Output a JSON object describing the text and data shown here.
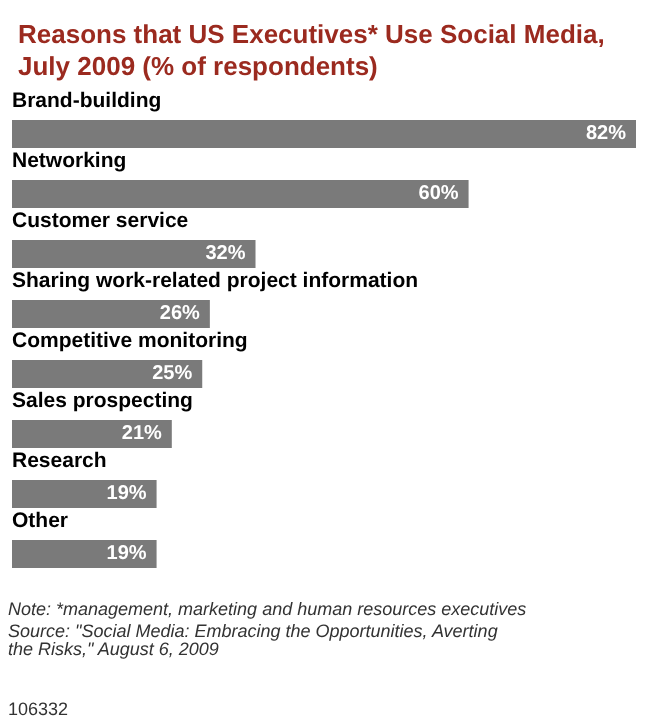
{
  "chart_data": {
    "type": "bar",
    "orientation": "horizontal",
    "title": "Reasons that US Executives* Use Social Media, July 2009 (% of respondents)",
    "categories": [
      "Brand-building",
      "Networking",
      "Customer service",
      "Sharing work-related project information",
      "Competitive monitoring",
      "Sales prospecting",
      "Research",
      "Other"
    ],
    "values": [
      82,
      60,
      32,
      26,
      25,
      21,
      19,
      19
    ],
    "value_labels": [
      "82%",
      "60%",
      "32%",
      "26%",
      "25%",
      "21%",
      "19%",
      "19%"
    ],
    "color": "#7a7a7a",
    "annotations": [
      "Note: *management, marketing and human resources executives",
      "Source: \"Social Media: Embracing the Opportunities, Averting the Risks,\" August 6, 2009",
      "106332"
    ]
  }
}
